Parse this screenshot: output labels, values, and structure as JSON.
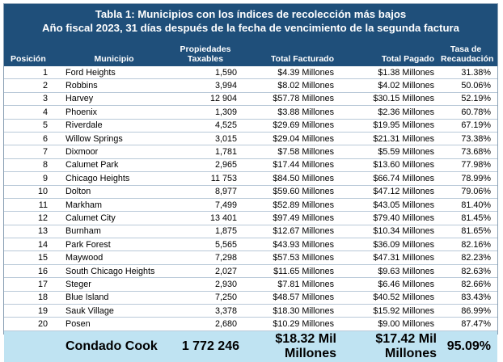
{
  "title": {
    "line1": "Tabla 1: Municipios con los índices de recolección más bajos",
    "line2": "Año fiscal 2023, 31 días después de la fecha de vencimiento de la segunda factura"
  },
  "headers": {
    "position": "Posición",
    "municipality": "Municipio",
    "properties_l1": "Propiedades",
    "properties_l2": "Taxables",
    "billed": "Total Facturado",
    "paid": "Total Pagado",
    "rate_l1": "Tasa de",
    "rate_l2": "Recaudación"
  },
  "rows": [
    {
      "pos": "1",
      "name": "Ford Heights",
      "props": "1,590",
      "billed": "$4.39 Millones",
      "paid": "$1.38 Millones",
      "rate": "31.38%"
    },
    {
      "pos": "2",
      "name": "Robbins",
      "props": "3,994",
      "billed": "$8.02 Millones",
      "paid": "$4.02 Millones",
      "rate": "50.06%"
    },
    {
      "pos": "3",
      "name": "Harvey",
      "props": "12 904",
      "billed": "$57.78 Millones",
      "paid": "$30.15 Millones",
      "rate": "52.19%"
    },
    {
      "pos": "4",
      "name": "Phoenix",
      "props": "1,309",
      "billed": "$3.88 Millones",
      "paid": "$2.36 Millones",
      "rate": "60.78%"
    },
    {
      "pos": "5",
      "name": "Riverdale",
      "props": "4,525",
      "billed": "$29.69 Millones",
      "paid": "$19.95 Millones",
      "rate": "67.19%"
    },
    {
      "pos": "6",
      "name": "Willow Springs",
      "props": "3,015",
      "billed": "$29.04 Millones",
      "paid": "$21.31 Millones",
      "rate": "73.38%"
    },
    {
      "pos": "7",
      "name": "Dixmoor",
      "props": "1,781",
      "billed": "$7.58 Millones",
      "paid": "$5.59 Millones",
      "rate": "73.68%"
    },
    {
      "pos": "8",
      "name": "Calumet Park",
      "props": "2,965",
      "billed": "$17.44 Millones",
      "paid": "$13.60 Millones",
      "rate": "77.98%"
    },
    {
      "pos": "9",
      "name": "Chicago Heights",
      "props": "11 753",
      "billed": "$84.50 Millones",
      "paid": "$66.74 Millones",
      "rate": "78.99%"
    },
    {
      "pos": "10",
      "name": "Dolton",
      "props": "8,977",
      "billed": "$59.60 Millones",
      "paid": "$47.12 Millones",
      "rate": "79.06%"
    },
    {
      "pos": "11",
      "name": "Markham",
      "props": "7,499",
      "billed": "$52.89 Millones",
      "paid": "$43.05 Millones",
      "rate": "81.40%"
    },
    {
      "pos": "12",
      "name": "Calumet City",
      "props": "13 401",
      "billed": "$97.49 Millones",
      "paid": "$79.40 Millones",
      "rate": "81.45%"
    },
    {
      "pos": "13",
      "name": "Burnham",
      "props": "1,875",
      "billed": "$12.67 Millones",
      "paid": "$10.34 Millones",
      "rate": "81.65%"
    },
    {
      "pos": "14",
      "name": "Park Forest",
      "props": "5,565",
      "billed": "$43.93 Millones",
      "paid": "$36.09 Millones",
      "rate": "82.16%"
    },
    {
      "pos": "15",
      "name": "Maywood",
      "props": "7,298",
      "billed": "$57.53 Millones",
      "paid": "$47.31 Millones",
      "rate": "82.23%"
    },
    {
      "pos": "16",
      "name": "South Chicago Heights",
      "props": "2,027",
      "billed": "$11.65 Millones",
      "paid": "$9.63 Millones",
      "rate": "82.63%"
    },
    {
      "pos": "17",
      "name": "Steger",
      "props": "2,930",
      "billed": "$7.81 Millones",
      "paid": "$6.46 Millones",
      "rate": "82.66%"
    },
    {
      "pos": "18",
      "name": "Blue Island",
      "props": "7,250",
      "billed": "$48.57 Millones",
      "paid": "$40.52 Millones",
      "rate": "83.43%"
    },
    {
      "pos": "19",
      "name": "Sauk Village",
      "props": "3,378",
      "billed": "$18.30 Millones",
      "paid": "$15.92 Millones",
      "rate": "86.99%"
    },
    {
      "pos": "20",
      "name": "Posen",
      "props": "2,680",
      "billed": "$10.29 Millones",
      "paid": "$9.00 Millones",
      "rate": "87.47%"
    }
  ],
  "total": {
    "name": "Condado Cook",
    "props": "1 772 246",
    "billed": "$18.32 Mil Millones",
    "paid": "$17.42 Mil Millones",
    "rate": "95.09%"
  },
  "colors": {
    "header_bg": "#1f4f7a",
    "total_row_bg": "#bfe3f2",
    "row_border": "#b9c9d8"
  }
}
